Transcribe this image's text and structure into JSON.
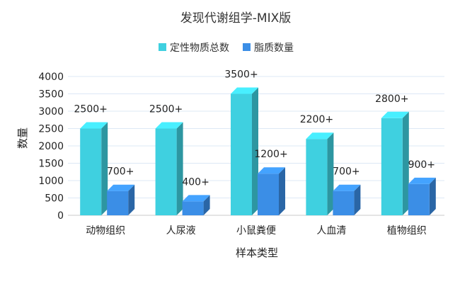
{
  "chart_data": {
    "type": "bar",
    "title": "发现代谢组学-MIX版",
    "xlabel": "样本类型",
    "ylabel": "数量",
    "categories": [
      "动物组织",
      "人尿液",
      "小鼠粪便",
      "人血清",
      "植物组织"
    ],
    "series": [
      {
        "name": "定性物质总数",
        "values": [
          2500,
          2500,
          3500,
          2200,
          2800
        ],
        "labels": [
          "2500+",
          "2500+",
          "3500+",
          "2200+",
          "2800+"
        ],
        "color": "#3fd0e0"
      },
      {
        "name": "脂质数量",
        "values": [
          700,
          400,
          1200,
          700,
          900
        ],
        "labels": [
          "700+",
          "400+",
          "1200+",
          "700+",
          "900+"
        ],
        "color": "#3b8ee6"
      }
    ],
    "ylim": [
      0,
      4000
    ],
    "yticks": [
      0,
      500,
      1000,
      1500,
      2000,
      2500,
      3000,
      3500,
      4000
    ],
    "grid": true,
    "legend_position": "top"
  }
}
